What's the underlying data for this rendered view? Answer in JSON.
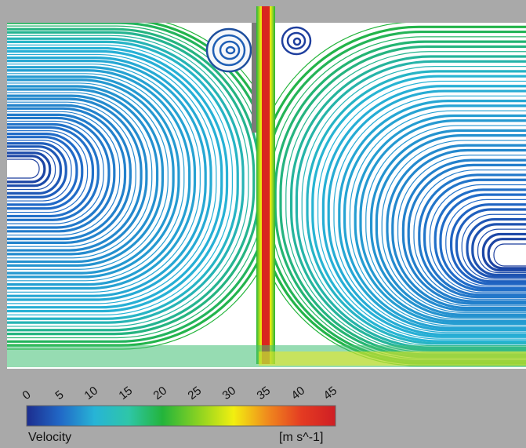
{
  "legend": {
    "title": "Velocity",
    "unit": "[m s^-1]",
    "ticks": [
      "0",
      "5",
      "10",
      "15",
      "20",
      "25",
      "30",
      "35",
      "40",
      "45"
    ],
    "range": [
      0,
      45
    ],
    "colormap": [
      "#1c2d8f",
      "#2169c7",
      "#27b4d6",
      "#2ec6a8",
      "#23b43b",
      "#8ed321",
      "#f2ef10",
      "#f08a1d",
      "#e43b22",
      "#cf1e24"
    ]
  },
  "colors": {
    "background": "#a9a9a9",
    "domain_fill": "#ffffff",
    "wall": "#7a7a7a",
    "jet_core": "#d9261f"
  }
}
